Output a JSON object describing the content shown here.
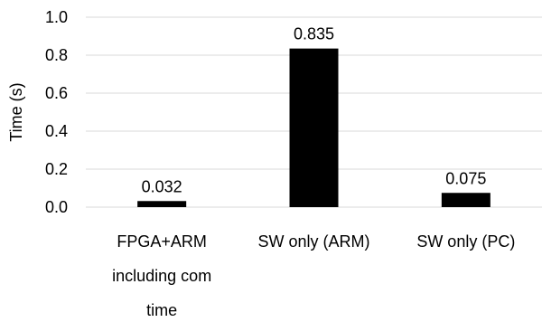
{
  "chart_data": {
    "type": "bar",
    "categories": [
      [
        "FPGA+ARM",
        "including com",
        "time"
      ],
      [
        "SW only (ARM)"
      ],
      [
        "SW only (PC)"
      ]
    ],
    "values": [
      0.032,
      0.835,
      0.075
    ],
    "data_labels": [
      "0.032",
      "0.835",
      "0.075"
    ],
    "title": "",
    "xlabel": "",
    "ylabel": "Time (s)",
    "ylim": [
      0,
      1.0
    ],
    "yticks": [
      "0.0",
      "0.2",
      "0.4",
      "0.6",
      "0.8",
      "1.0"
    ],
    "grid": true,
    "legend": "none",
    "bar_color": "#000000",
    "grid_color": "#d9d9d9"
  }
}
